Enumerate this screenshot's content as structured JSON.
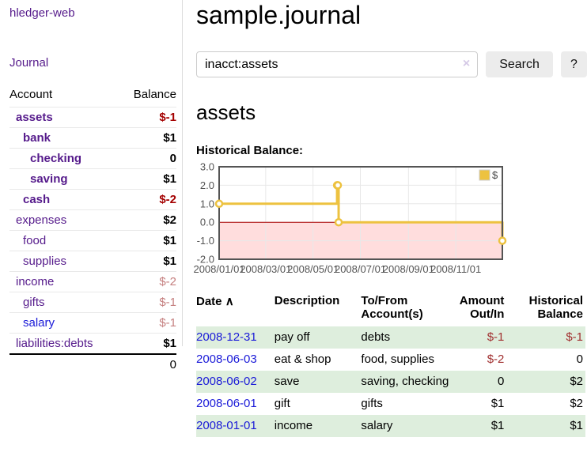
{
  "app": {
    "brand": "hledger-web"
  },
  "sidebar": {
    "nav": {
      "journal": "Journal"
    },
    "accounts": {
      "col_account": "Account",
      "col_balance": "Balance",
      "rows": [
        {
          "name": "assets",
          "depth": 1,
          "balance": "$-1"
        },
        {
          "name": "bank",
          "depth": 2,
          "balance": "$1"
        },
        {
          "name": "checking",
          "depth": 3,
          "balance": "0"
        },
        {
          "name": "saving",
          "depth": 3,
          "balance": "$1"
        },
        {
          "name": "cash",
          "depth": 2,
          "balance": "$-2"
        },
        {
          "name": "expenses",
          "depth": 1,
          "balance": "$2"
        },
        {
          "name": "food",
          "depth": 2,
          "balance": "$1"
        },
        {
          "name": "supplies",
          "depth": 2,
          "balance": "$1"
        },
        {
          "name": "income",
          "depth": 1,
          "balance": "$-2"
        },
        {
          "name": "gifts",
          "depth": 2,
          "balance": "$-1"
        },
        {
          "name": "salary",
          "depth": 2,
          "balance": "$-1"
        },
        {
          "name": "liabilities:debts",
          "depth": 1,
          "balance": "$1"
        }
      ],
      "total": "0"
    }
  },
  "header": {
    "title": "sample.journal"
  },
  "search": {
    "query": "inacct:assets",
    "clear_icon": "×",
    "button": "Search",
    "help_button": "?"
  },
  "account_page": {
    "title": "assets",
    "chart_label": "Historical Balance:"
  },
  "chart_data": {
    "type": "line",
    "step": true,
    "title": "Historical Balance:",
    "series": [
      {
        "name": "$",
        "color": "#edc240",
        "points": [
          [
            "2008-01-01",
            1
          ],
          [
            "2008-06-01",
            2
          ],
          [
            "2008-06-02",
            2
          ],
          [
            "2008-06-03",
            0
          ],
          [
            "2008-12-31",
            -1
          ]
        ]
      }
    ],
    "x_range": [
      "2008-01-01",
      "2008-12-31"
    ],
    "x_ticks": [
      "2008/01/01",
      "2008/03/01",
      "2008/05/01",
      "2008/07/01",
      "2008/09/01",
      "2008/11/01"
    ],
    "y_ticks": [
      3,
      2,
      1,
      0,
      -1,
      -2
    ],
    "ylim": [
      -2,
      3
    ],
    "grid": true,
    "legend_position": "top-right",
    "negative_fill": "#ffdddd",
    "zero_line_color": "#aa0000",
    "border_color": "#545454",
    "grid_color": "#e8e8e8",
    "tick_label_color": "#545454",
    "marker": "hollow-circle"
  },
  "transactions": {
    "headers": {
      "date": "Date",
      "sort_arrow": "∧",
      "description": "Description",
      "accounts": "To/From Account(s)",
      "amount": "Amount Out/In",
      "balance": "Historical Balance"
    },
    "rows": [
      {
        "date": "2008-12-31",
        "description": "pay off",
        "accounts": "debts",
        "amount": "$-1",
        "balance": "$-1"
      },
      {
        "date": "2008-06-03",
        "description": "eat & shop",
        "accounts": "food, supplies",
        "amount": "$-2",
        "balance": "0"
      },
      {
        "date": "2008-06-02",
        "description": "save",
        "accounts": "saving, checking",
        "amount": "0",
        "balance": "$2"
      },
      {
        "date": "2008-06-01",
        "description": "gift",
        "accounts": "gifts",
        "amount": "$1",
        "balance": "$2"
      },
      {
        "date": "2008-01-01",
        "description": "income",
        "accounts": "salary",
        "amount": "$1",
        "balance": "$1"
      }
    ]
  }
}
